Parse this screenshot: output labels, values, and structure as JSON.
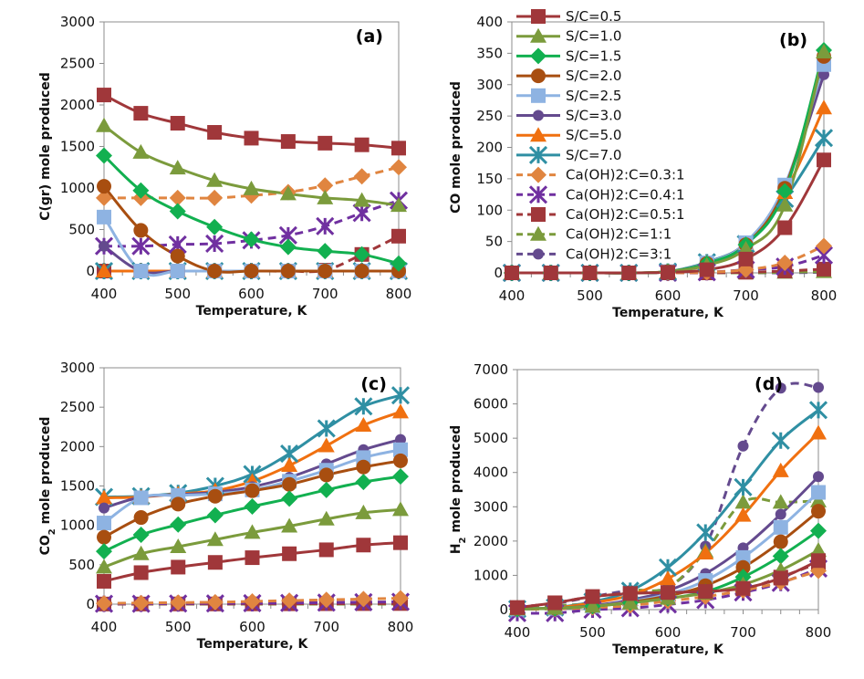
{
  "chart_data": {
    "type": "line",
    "x": [
      400,
      450,
      500,
      550,
      600,
      650,
      700,
      750,
      800
    ],
    "series_styles": [
      {
        "name": "S/C=0.5",
        "color": "#A0373A",
        "marker": "square",
        "dash": false
      },
      {
        "name": "S/C=1.0",
        "color": "#7B9B3C",
        "marker": "triangle",
        "dash": false
      },
      {
        "name": "S/C=1.5",
        "color": "#12B050",
        "marker": "diamond",
        "dash": false
      },
      {
        "name": "S/C=2.0",
        "color": "#A84E10",
        "marker": "circle",
        "dash": false
      },
      {
        "name": "S/C=2.5",
        "color": "#8EB3E2",
        "marker": "square",
        "dash": false
      },
      {
        "name": "S/C=3.0",
        "color": "#644A8E",
        "marker": "circle-small",
        "dash": false
      },
      {
        "name": "S/C=5.0",
        "color": "#F07010",
        "marker": "triangle",
        "dash": false
      },
      {
        "name": "S/C=7.0",
        "color": "#2F8FA3",
        "marker": "asterisk",
        "dash": false
      },
      {
        "name": "Ca(OH)2:C=0.3:1",
        "color": "#E08540",
        "marker": "diamond",
        "dash": true
      },
      {
        "name": "Ca(OH)2:C=0.4:1",
        "color": "#7030A0",
        "marker": "asterisk",
        "dash": true
      },
      {
        "name": "Ca(OH)2:C=0.5:1",
        "color": "#A0373A",
        "marker": "square",
        "dash": true
      },
      {
        "name": "Ca(OH)2:C=1:1",
        "color": "#7B9B3C",
        "marker": "triangle",
        "dash": true
      },
      {
        "name": "Ca(OH)2:C=3:1",
        "color": "#644A8E",
        "marker": "circle-small",
        "dash": true
      }
    ],
    "legend": {
      "placement": "top-left of panel (b)",
      "entries": [
        "S/C=0.5",
        "S/C=1.0",
        "S/C=1.5",
        "S/C=2.0",
        "S/C=2.5",
        "S/C=3.0",
        "S/C=5.0",
        "S/C=7.0",
        "Ca(OH)2:C=0.3:1",
        "Ca(OH)2:C=0.4:1",
        "Ca(OH)2:C=0.5:1",
        "Ca(OH)2:C=1:1",
        "Ca(OH)2:C=3:1"
      ]
    },
    "panels": [
      {
        "id": "a",
        "label": "(a)",
        "ylabel": "C(gr) mole produced",
        "xlabel": "Temperature, K",
        "ylim": [
          0,
          3000
        ],
        "yticks": [
          0,
          500,
          1000,
          1500,
          2000,
          2500,
          3000
        ],
        "xlim": [
          400,
          800
        ],
        "xticks": [
          400,
          500,
          600,
          700,
          800
        ],
        "series": [
          {
            "name": "S/C=0.5",
            "values": [
              2120,
              1900,
              1780,
              1670,
              1600,
              1560,
              1540,
              1520,
              1480
            ]
          },
          {
            "name": "S/C=1.0",
            "values": [
              1750,
              1430,
              1240,
              1090,
              990,
              930,
              880,
              850,
              790
            ]
          },
          {
            "name": "S/C=1.5",
            "values": [
              1390,
              970,
              720,
              530,
              380,
              290,
              240,
              200,
              90
            ]
          },
          {
            "name": "S/C=2.0",
            "values": [
              1020,
              490,
              180,
              0,
              0,
              0,
              0,
              0,
              0
            ]
          },
          {
            "name": "S/C=2.5",
            "values": [
              650,
              0,
              0,
              0,
              0,
              0,
              0,
              0,
              0
            ]
          },
          {
            "name": "S/C=3.0",
            "values": [
              300,
              0,
              0,
              0,
              0,
              0,
              0,
              0,
              0
            ]
          },
          {
            "name": "S/C=5.0",
            "values": [
              0,
              0,
              0,
              0,
              0,
              0,
              0,
              0,
              0
            ]
          },
          {
            "name": "S/C=7.0",
            "values": [
              0,
              0,
              0,
              0,
              0,
              0,
              0,
              0,
              0
            ]
          },
          {
            "name": "Ca(OH)2:C=0.3:1",
            "values": [
              880,
              880,
              880,
              880,
              910,
              950,
              1030,
              1140,
              1250
            ]
          },
          {
            "name": "Ca(OH)2:C=0.4:1",
            "values": [
              300,
              300,
              320,
              330,
              370,
              430,
              540,
              700,
              850
            ]
          },
          {
            "name": "Ca(OH)2:C=0.5:1",
            "values": [
              0,
              0,
              0,
              0,
              0,
              0,
              10,
              200,
              420
            ]
          },
          {
            "name": "Ca(OH)2:C=1:1",
            "values": [
              0,
              0,
              0,
              0,
              0,
              0,
              0,
              0,
              0
            ]
          },
          {
            "name": "Ca(OH)2:C=3:1",
            "values": [
              0,
              0,
              0,
              0,
              0,
              0,
              0,
              0,
              0
            ]
          }
        ]
      },
      {
        "id": "b",
        "label": "(b)",
        "ylabel": "CO mole produced",
        "xlabel": "Temperature, K",
        "ylim": [
          0,
          400
        ],
        "yticks": [
          0,
          50,
          100,
          150,
          200,
          250,
          300,
          350,
          400
        ],
        "xlim": [
          400,
          800
        ],
        "xticks": [
          400,
          500,
          600,
          700,
          800
        ],
        "series": [
          {
            "name": "S/C=0.5",
            "values": [
              0,
              0,
              0,
              0,
              1,
              5,
              22,
              72,
              180
            ]
          },
          {
            "name": "S/C=1.0",
            "values": [
              0,
              0,
              0,
              0,
              2,
              12,
              38,
              108,
              352
            ]
          },
          {
            "name": "S/C=1.5",
            "values": [
              0,
              0,
              0,
              0,
              2,
              15,
              45,
              130,
              355
            ]
          },
          {
            "name": "S/C=2.0",
            "values": [
              0,
              0,
              0,
              0,
              2,
              15,
              45,
              135,
              345
            ]
          },
          {
            "name": "S/C=2.5",
            "values": [
              0,
              0,
              0,
              0,
              2,
              16,
              48,
              140,
              332
            ]
          },
          {
            "name": "S/C=3.0",
            "values": [
              0,
              0,
              0,
              0,
              2,
              16,
              48,
              138,
              316
            ]
          },
          {
            "name": "S/C=5.0",
            "values": [
              0,
              0,
              0,
              0,
              2,
              16,
              47,
              128,
              263
            ]
          },
          {
            "name": "S/C=7.0",
            "values": [
              0,
              0,
              0,
              0,
              2,
              17,
              46,
              118,
              215
            ]
          },
          {
            "name": "Ca(OH)2:C=0.3:1",
            "values": [
              0,
              0,
              0,
              0,
              0,
              1,
              5,
              16,
              43
            ]
          },
          {
            "name": "Ca(OH)2:C=0.4:1",
            "values": [
              0,
              0,
              0,
              0,
              0,
              1,
              5,
              10,
              28
            ]
          },
          {
            "name": "Ca(OH)2:C=0.5:1",
            "values": [
              0,
              0,
              0,
              0,
              0,
              0,
              1,
              3,
              6
            ]
          },
          {
            "name": "Ca(OH)2:C=1:1",
            "values": [
              0,
              0,
              0,
              0,
              0,
              0,
              0,
              1,
              2
            ]
          },
          {
            "name": "Ca(OH)2:C=3:1",
            "values": [
              0,
              0,
              0,
              0,
              0,
              0,
              0,
              0,
              1
            ]
          }
        ]
      },
      {
        "id": "c",
        "label": "(c)",
        "ylabel": "CO2 mole produced",
        "xlabel": "Temperature, K",
        "ylim": [
          0,
          3000
        ],
        "yticks": [
          0,
          500,
          1000,
          1500,
          2000,
          2500,
          3000
        ],
        "xlim": [
          400,
          800
        ],
        "xticks": [
          400,
          500,
          600,
          700,
          800
        ],
        "series": [
          {
            "name": "S/C=0.5",
            "values": [
              290,
              400,
              470,
              530,
              590,
              640,
              690,
              750,
              780
            ]
          },
          {
            "name": "S/C=1.0",
            "values": [
              470,
              640,
              730,
              820,
              910,
              990,
              1080,
              1160,
              1200
            ]
          },
          {
            "name": "S/C=1.5",
            "values": [
              670,
              880,
              1010,
              1130,
              1240,
              1340,
              1450,
              1550,
              1620
            ]
          },
          {
            "name": "S/C=2.0",
            "values": [
              850,
              1100,
              1270,
              1370,
              1440,
              1520,
              1640,
              1740,
              1820
            ]
          },
          {
            "name": "S/C=2.5",
            "values": [
              1030,
              1350,
              1380,
              1400,
              1450,
              1560,
              1700,
              1860,
              1960
            ]
          },
          {
            "name": "S/C=3.0",
            "values": [
              1220,
              1360,
              1390,
              1420,
              1490,
              1610,
              1780,
              1960,
              2090
            ]
          },
          {
            "name": "S/C=5.0",
            "values": [
              1350,
              1360,
              1400,
              1440,
              1560,
              1760,
              2010,
              2270,
              2440
            ]
          },
          {
            "name": "S/C=7.0",
            "values": [
              1360,
              1370,
              1410,
              1500,
              1650,
              1910,
              2230,
              2510,
              2650
            ]
          },
          {
            "name": "Ca(OH)2:C=0.3:1",
            "values": [
              10,
              15,
              20,
              25,
              35,
              45,
              55,
              65,
              75
            ]
          },
          {
            "name": "Ca(OH)2:C=0.4:1",
            "values": [
              5,
              5,
              8,
              10,
              12,
              15,
              20,
              25,
              30
            ]
          },
          {
            "name": "Ca(OH)2:C=0.5:1",
            "values": [
              2,
              2,
              3,
              3,
              4,
              5,
              6,
              7,
              8
            ]
          },
          {
            "name": "Ca(OH)2:C=1:1",
            "values": [
              0,
              0,
              0,
              0,
              0,
              0,
              0,
              0,
              0
            ]
          },
          {
            "name": "Ca(OH)2:C=3:1",
            "values": [
              0,
              0,
              0,
              0,
              0,
              0,
              0,
              0,
              0
            ]
          }
        ]
      },
      {
        "id": "d",
        "label": "(d)",
        "ylabel": "H2 mole produced",
        "xlabel": "Temperature, K",
        "ylim": [
          0,
          7000
        ],
        "yticks": [
          0,
          1000,
          2000,
          3000,
          4000,
          5000,
          6000,
          7000
        ],
        "xlim": [
          400,
          800
        ],
        "xticks": [
          400,
          500,
          600,
          700,
          800
        ],
        "series": [
          {
            "name": "S/C=0.5",
            "values": [
              60,
              200,
              380,
              470,
              500,
              530,
              620,
              920,
              1430
            ]
          },
          {
            "name": "S/C=1.0",
            "values": [
              20,
              40,
              100,
              200,
              330,
              480,
              730,
              1150,
              1730
            ]
          },
          {
            "name": "S/C=1.5",
            "values": [
              20,
              40,
              100,
              200,
              330,
              520,
              950,
              1560,
              2300
            ]
          },
          {
            "name": "S/C=2.0",
            "values": [
              20,
              40,
              100,
              220,
              400,
              700,
              1230,
              1980,
              2870
            ]
          },
          {
            "name": "S/C=2.5",
            "values": [
              20,
              40,
              100,
              240,
              450,
              850,
              1520,
              2400,
              3420
            ]
          },
          {
            "name": "S/C=3.0",
            "values": [
              20,
              40,
              120,
              280,
              550,
              1050,
              1800,
              2780,
              3880
            ]
          },
          {
            "name": "S/C=5.0",
            "values": [
              20,
              50,
              200,
              420,
              900,
              1650,
              2750,
              4050,
              5150
            ]
          },
          {
            "name": "S/C=7.0",
            "values": [
              20,
              60,
              230,
              550,
              1230,
              2250,
              3570,
              4930,
              5820
            ]
          },
          {
            "name": "Ca(OH)2:C=0.3:1",
            "values": [
              10,
              20,
              60,
              120,
              250,
              380,
              560,
              800,
              1130
            ]
          },
          {
            "name": "Ca(OH)2:C=0.4:1",
            "values": [
              -100,
              -100,
              0,
              40,
              150,
              280,
              500,
              780,
              1200
            ]
          },
          {
            "name": "Ca(OH)2:C=0.5:1",
            "values": [
              60,
              200,
              380,
              480,
              490,
              560,
              600,
              950,
              1360
            ]
          },
          {
            "name": "Ca(OH)2:C=1:1",
            "values": [
              50,
              120,
              200,
              550,
              650,
              1700,
              3130,
              3130,
              3170
            ]
          },
          {
            "name": "Ca(OH)2:C=3:1",
            "values": [
              80,
              180,
              380,
              560,
              650,
              1850,
              4770,
              6460,
              6480
            ]
          }
        ]
      }
    ]
  }
}
